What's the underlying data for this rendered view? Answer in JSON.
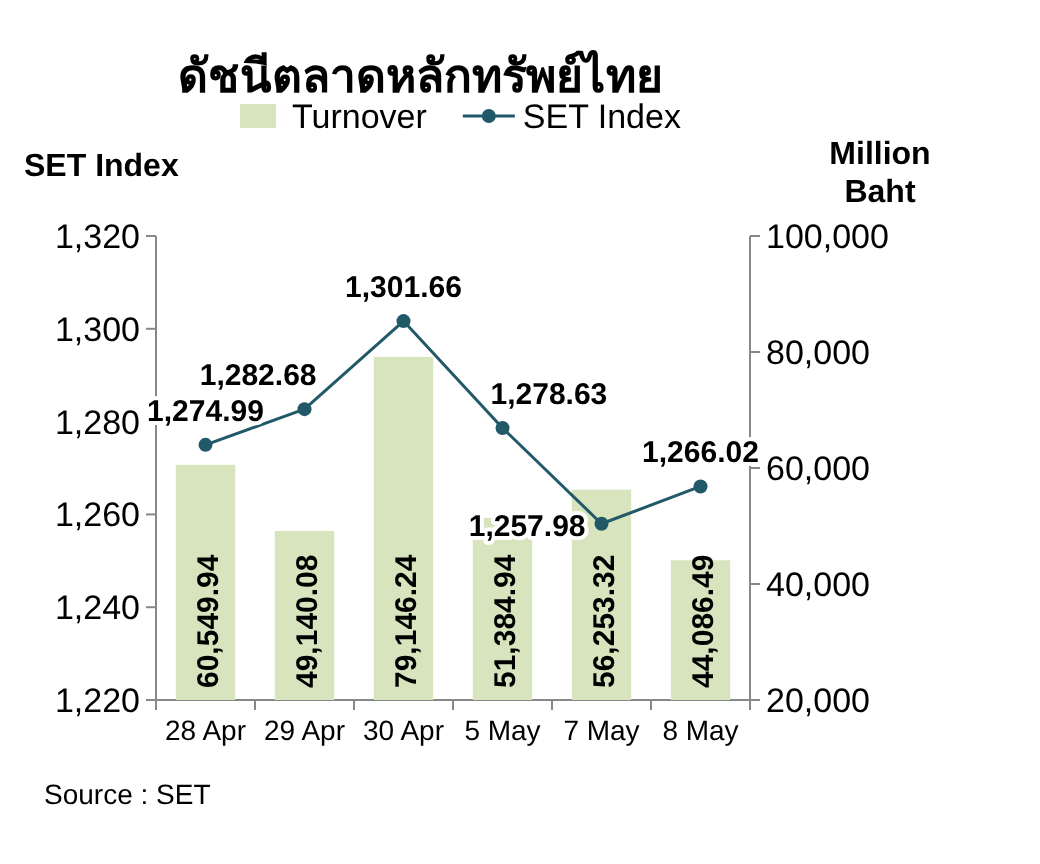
{
  "chart_data": {
    "type": "bar",
    "title": "ดัชนีตลาดหลักทรัพย์ไทย",
    "ylabel": "SET Index",
    "y2label": "Million Baht",
    "categories": [
      "28 Apr",
      "29 Apr",
      "30 Apr",
      "5 May",
      "7 May",
      "8 May"
    ],
    "series": [
      {
        "name": "Turnover",
        "axis": "y2",
        "color": "#d7e4bd",
        "values": [
          60549.94,
          49140.08,
          79146.24,
          51384.94,
          56253.32,
          44086.49
        ],
        "value_labels": [
          "60,549.94",
          "49,140.08",
          "79,146.24",
          "51,384.94",
          "56,253.32",
          "44,086.49"
        ]
      },
      {
        "name": "SET Index",
        "type": "line",
        "color": "#215968",
        "marker": "circle",
        "line_style": "solid",
        "values": [
          1274.99,
          1282.68,
          1301.66,
          1278.63,
          1257.98,
          1266.02
        ],
        "value_labels": [
          "1,274.99",
          "1,282.68",
          "1,301.66",
          "1,278.63",
          "1,257.98",
          "1,266.02"
        ]
      }
    ],
    "ylim": [
      1220,
      1320
    ],
    "yticks": [
      {
        "value": 1220,
        "label": "1,220"
      },
      {
        "value": 1240,
        "label": "1,240"
      },
      {
        "value": 1260,
        "label": "1,260"
      },
      {
        "value": 1280,
        "label": "1,280"
      },
      {
        "value": 1300,
        "label": "1,300"
      },
      {
        "value": 1320,
        "label": "1,320"
      }
    ],
    "y2lim": [
      20000,
      100000
    ],
    "y2ticks": [
      {
        "value": 20000,
        "label": "20,000"
      },
      {
        "value": 40000,
        "label": "40,000"
      },
      {
        "value": 60000,
        "label": "60,000"
      },
      {
        "value": 80000,
        "label": "80,000"
      },
      {
        "value": 100000,
        "label": "100,000"
      }
    ],
    "legend": "top",
    "grid": false,
    "annotations": [
      "Source : SET"
    ]
  }
}
